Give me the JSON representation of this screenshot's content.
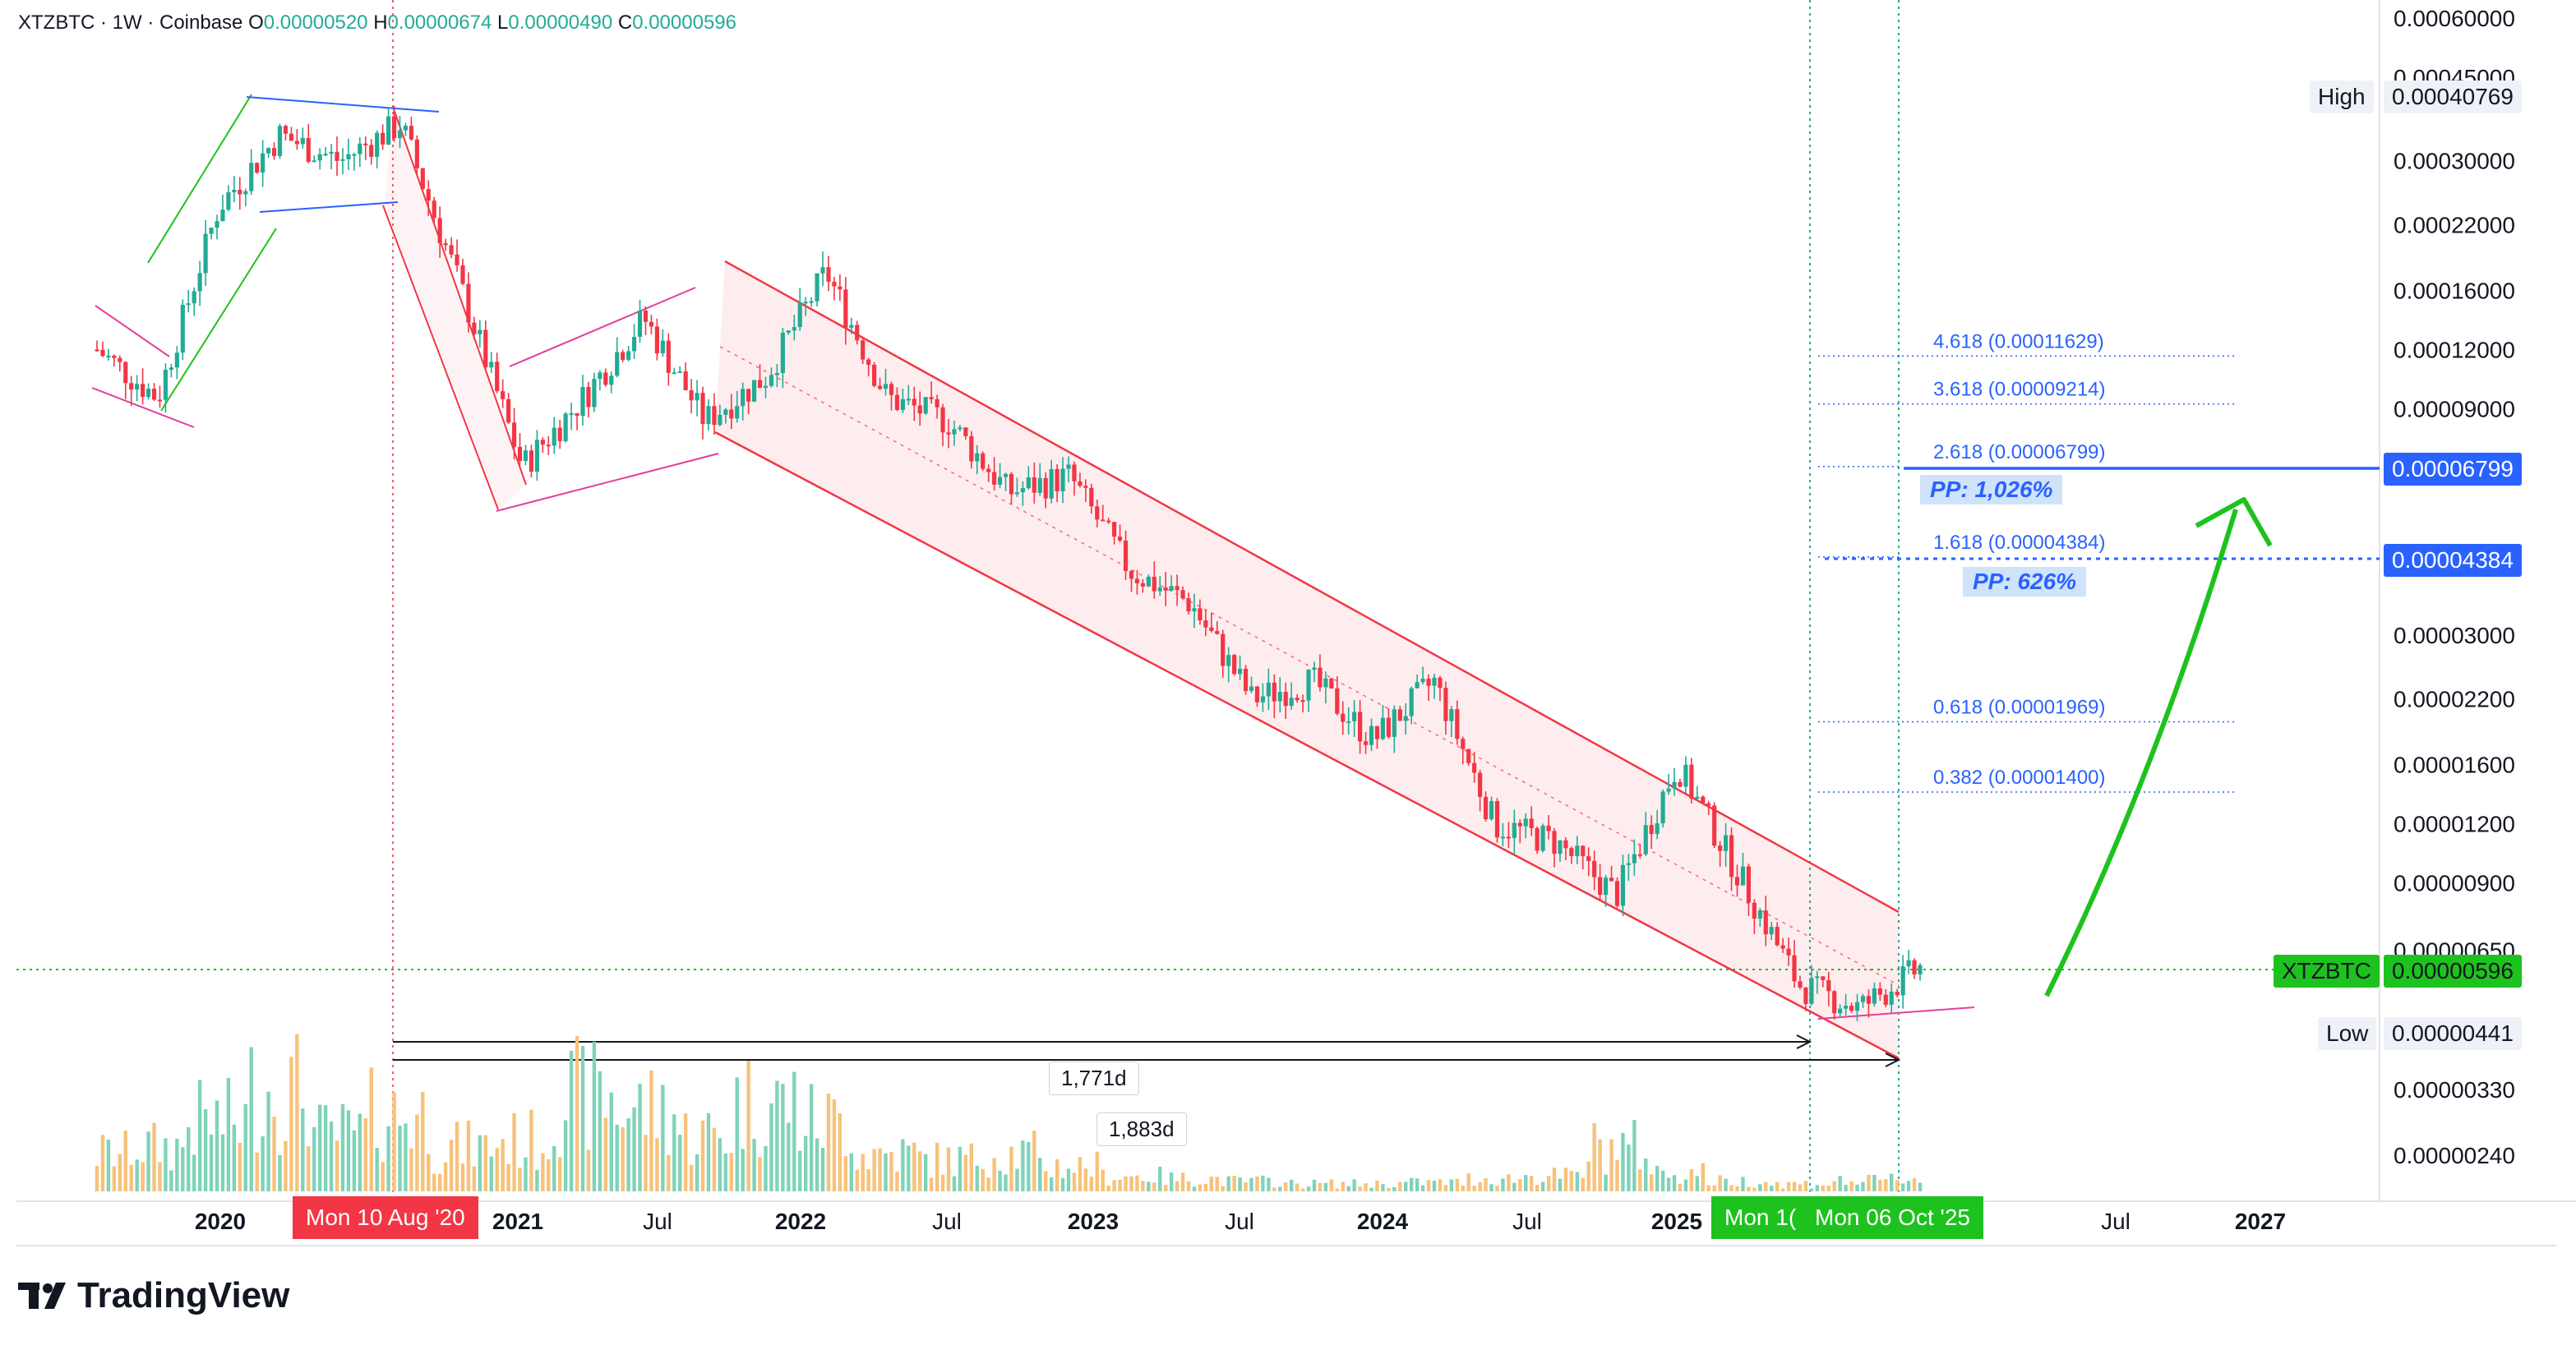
{
  "header": {
    "symbol": "XTZBTC · 1W · Coinbase",
    "o_label": "O",
    "o_value": "0.00000520",
    "h_label": "H",
    "h_value": "0.00000674",
    "l_label": "L",
    "l_value": "0.00000490",
    "c_label": "C",
    "c_value": "0.00000596"
  },
  "price_axis": {
    "ticks": [
      "0.00060000",
      "0.00045000",
      "0.00030000",
      "0.00022000",
      "0.00016000",
      "0.00012000",
      "0.00009000",
      "0.00006799",
      "0.00004384",
      "0.00003000",
      "0.00002200",
      "0.00001600",
      "0.00001200",
      "0.00000900",
      "0.00000650",
      "0.00000330",
      "0.00000240"
    ],
    "high_label": "High",
    "high_value": "0.00040769",
    "symbol_label": "XTZBTC",
    "last_value": "0.00000596",
    "low_label": "Low",
    "low_value": "0.00000441",
    "target1_value": "0.00006799",
    "target2_value": "0.00004384"
  },
  "time_axis": {
    "labels": [
      "2020",
      "2021",
      "Jul",
      "2022",
      "Jul",
      "2023",
      "Jul",
      "2024",
      "Jul",
      "2025",
      "Jul",
      "2027"
    ],
    "cursor_left": "Mon 10 Aug '20",
    "cursor_mid": "Mon 1(",
    "cursor_right": "Mon 06 Oct '25"
  },
  "fib_levels": [
    {
      "label": "4.618 (0.00011629)",
      "ratio": 4.618,
      "price": 0.00011629
    },
    {
      "label": "3.618 (0.00009214)",
      "ratio": 3.618,
      "price": 9.214e-05
    },
    {
      "label": "2.618 (0.00006799)",
      "ratio": 2.618,
      "price": 6.799e-05
    },
    {
      "label": "1.618 (0.00004384)",
      "ratio": 1.618,
      "price": 4.384e-05
    },
    {
      "label": "0.618 (0.00001969)",
      "ratio": 0.618,
      "price": 1.969e-05
    },
    {
      "label": "0.382 (0.00001400)",
      "ratio": 0.382,
      "price": 1.4e-05
    }
  ],
  "annotations": {
    "pp1": "PP: 1,026%",
    "pp2": "PP: 626%",
    "measure1": "1,771d",
    "measure2": "1,883d"
  },
  "brand": "TradingView",
  "colors": {
    "up": "#22ab94",
    "down": "#f23645",
    "fib": "#2962ff",
    "channel": "#f23645",
    "arrow": "#1ec21e"
  },
  "chart_data": {
    "type": "line",
    "title": "XTZBTC · 1W · Coinbase",
    "xlabel": "",
    "ylabel": "",
    "yscale": "log",
    "ylim": [
      2.2e-06,
      0.0006
    ],
    "series": [
      {
        "name": "XTZBTC",
        "x": [
          "2019-09",
          "2019-12",
          "2020-02",
          "2020-04",
          "2020-06",
          "2020-08",
          "2020-10",
          "2020-12",
          "2021-02",
          "2021-04",
          "2021-06",
          "2021-08",
          "2021-09",
          "2021-12",
          "2022-03",
          "2022-06",
          "2022-09",
          "2022-12",
          "2023-03",
          "2023-06",
          "2023-09",
          "2023-12",
          "2024-03",
          "2024-06",
          "2024-09",
          "2024-12",
          "2025-01",
          "2025-04",
          "2025-06",
          "2025-08",
          "2025-10"
        ],
        "values": [
          0.00012,
          9.5e-05,
          0.00024,
          0.00034,
          0.0003,
          0.00036,
          0.00016,
          6.8e-05,
          9.5e-05,
          0.00014,
          8.5e-05,
          0.000105,
          0.000175,
          9.5e-05,
          8.5e-05,
          6e-05,
          6.5e-05,
          4.1e-05,
          3.5e-05,
          2.2e-05,
          2.4e-05,
          1.8e-05,
          2.4e-05,
          1.2e-05,
          1.1e-05,
          8.5e-06,
          1.6e-05,
          9.5e-06,
          5.5e-06,
          4.9e-06,
          5.96e-06
        ]
      }
    ],
    "volume_relative": [
      0.3,
      0.35,
      0.55,
      0.8,
      0.45,
      0.6,
      0.35,
      0.4,
      0.75,
      0.65,
      0.45,
      0.7,
      0.55,
      0.3,
      0.25,
      0.3,
      0.2,
      0.12,
      0.1,
      0.08,
      0.06,
      0.06,
      0.07,
      0.1,
      0.12,
      0.35,
      0.15,
      0.08,
      0.06,
      0.08,
      0.1
    ]
  }
}
